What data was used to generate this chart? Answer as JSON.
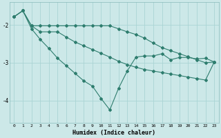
{
  "xlabel": "Humidex (Indice chaleur)",
  "background_color": "#cce8e8",
  "grid_color": "#aad4d4",
  "line_color": "#2e7d6e",
  "xlim": [
    -0.5,
    23.5
  ],
  "ylim": [
    -4.6,
    -1.4
  ],
  "yticks": [
    -4,
    -3,
    -2
  ],
  "xticks": [
    0,
    1,
    2,
    3,
    4,
    5,
    6,
    7,
    8,
    9,
    10,
    11,
    12,
    13,
    14,
    15,
    16,
    17,
    18,
    19,
    20,
    21,
    22,
    23
  ],
  "line1_x": [
    0,
    1,
    2,
    3,
    4,
    5,
    6,
    7,
    8,
    9,
    10,
    11,
    12,
    13,
    14,
    15,
    16,
    17,
    18,
    19,
    20,
    21,
    22,
    23
  ],
  "line1_y": [
    -1.78,
    -1.62,
    -2.1,
    -2.38,
    -2.62,
    -2.88,
    -3.08,
    -3.28,
    -3.48,
    -3.62,
    -3.95,
    -4.25,
    -3.68,
    -3.22,
    -2.85,
    -2.82,
    -2.82,
    -2.76,
    -2.92,
    -2.86,
    -2.86,
    -2.9,
    -2.88,
    -2.98
  ],
  "line2_x": [
    0,
    1,
    2,
    3,
    4,
    5,
    6,
    7,
    8,
    9,
    10,
    11,
    12,
    13,
    14,
    15,
    16,
    17,
    18,
    19,
    20,
    21,
    22,
    23
  ],
  "line2_y": [
    -1.78,
    -1.62,
    -2.02,
    -2.18,
    -2.18,
    -2.18,
    -2.32,
    -2.45,
    -2.55,
    -2.65,
    -2.75,
    -2.85,
    -2.96,
    -3.05,
    -3.12,
    -3.18,
    -3.22,
    -3.26,
    -3.3,
    -3.34,
    -3.38,
    -3.42,
    -3.46,
    -2.98
  ],
  "line3_x": [
    0,
    1,
    2,
    3,
    4,
    5,
    6,
    7,
    8,
    9,
    10,
    11,
    12,
    13,
    14,
    15,
    16,
    17,
    18,
    19,
    20,
    21,
    22,
    23
  ],
  "line3_y": [
    -1.78,
    -1.62,
    -2.02,
    -2.02,
    -2.02,
    -2.02,
    -2.02,
    -2.02,
    -2.02,
    -2.02,
    -2.02,
    -2.02,
    -2.1,
    -2.18,
    -2.25,
    -2.35,
    -2.48,
    -2.6,
    -2.68,
    -2.76,
    -2.84,
    -2.92,
    -3.0,
    -2.98
  ],
  "marker": "D",
  "markersize": 2.0,
  "linewidth": 0.8
}
